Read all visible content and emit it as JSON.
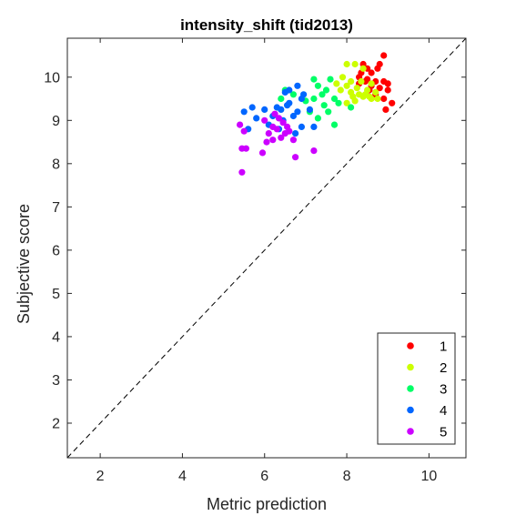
{
  "chart_data": {
    "type": "scatter",
    "title": "intensity_shift (tid2013)",
    "xlabel": "Metric prediction",
    "ylabel": "Subjective score",
    "xlim": [
      1.2,
      10.9
    ],
    "ylim": [
      1.2,
      10.9
    ],
    "xticks": [
      2,
      4,
      6,
      8,
      10
    ],
    "yticks": [
      2,
      3,
      4,
      5,
      6,
      7,
      8,
      9,
      10
    ],
    "grid": false,
    "reference_line": "y = x (dashed)",
    "legend_position": "bottom-right",
    "series": [
      {
        "name": "1",
        "color": "#ff0000",
        "points": [
          [
            8.9,
            10.5
          ],
          [
            8.8,
            10.3
          ],
          [
            8.5,
            10.2
          ],
          [
            8.4,
            10.3
          ],
          [
            8.6,
            10.1
          ],
          [
            8.3,
            10.0
          ],
          [
            8.5,
            9.95
          ],
          [
            8.7,
            9.9
          ],
          [
            8.9,
            9.9
          ],
          [
            9.0,
            9.85
          ],
          [
            8.6,
            9.8
          ],
          [
            8.3,
            9.85
          ],
          [
            8.8,
            9.75
          ],
          [
            9.0,
            9.7
          ],
          [
            8.7,
            9.6
          ],
          [
            8.55,
            9.7
          ],
          [
            8.9,
            9.5
          ],
          [
            9.1,
            9.4
          ],
          [
            8.95,
            9.25
          ],
          [
            8.35,
            10.1
          ],
          [
            8.75,
            10.2
          ],
          [
            8.45,
            9.9
          ]
        ]
      },
      {
        "name": "2",
        "color": "#ccff00",
        "points": [
          [
            8.0,
            10.3
          ],
          [
            8.2,
            10.3
          ],
          [
            8.4,
            10.2
          ],
          [
            7.9,
            10.0
          ],
          [
            8.1,
            9.9
          ],
          [
            8.35,
            9.9
          ],
          [
            8.6,
            9.85
          ],
          [
            8.0,
            9.8
          ],
          [
            8.25,
            9.75
          ],
          [
            8.5,
            9.7
          ],
          [
            8.7,
            9.65
          ],
          [
            8.3,
            9.6
          ],
          [
            8.55,
            9.55
          ],
          [
            8.15,
            9.55
          ],
          [
            8.75,
            9.5
          ],
          [
            7.85,
            9.7
          ],
          [
            8.1,
            9.65
          ],
          [
            7.75,
            9.85
          ],
          [
            8.45,
            9.6
          ],
          [
            8.2,
            9.45
          ],
          [
            8.6,
            9.5
          ],
          [
            8.0,
            9.4
          ],
          [
            8.4,
            9.55
          ]
        ]
      },
      {
        "name": "3",
        "color": "#00ff66",
        "points": [
          [
            6.5,
            9.7
          ],
          [
            6.7,
            9.6
          ],
          [
            6.4,
            9.5
          ],
          [
            7.2,
            9.95
          ],
          [
            7.6,
            9.95
          ],
          [
            7.3,
            9.8
          ],
          [
            7.5,
            9.7
          ],
          [
            7.4,
            9.6
          ],
          [
            7.7,
            9.5
          ],
          [
            7.2,
            9.5
          ],
          [
            7.0,
            9.45
          ],
          [
            7.45,
            9.35
          ],
          [
            7.8,
            9.4
          ],
          [
            7.55,
            9.2
          ],
          [
            8.1,
            9.3
          ],
          [
            7.1,
            9.2
          ],
          [
            7.3,
            9.05
          ],
          [
            7.7,
            8.9
          ]
        ]
      },
      {
        "name": "4",
        "color": "#0066ff",
        "points": [
          [
            6.6,
            9.7
          ],
          [
            6.8,
            9.8
          ],
          [
            6.5,
            9.65
          ],
          [
            6.9,
            9.5
          ],
          [
            6.6,
            9.4
          ],
          [
            6.3,
            9.3
          ],
          [
            6.0,
            9.25
          ],
          [
            5.7,
            9.3
          ],
          [
            6.4,
            9.25
          ],
          [
            6.8,
            9.2
          ],
          [
            7.1,
            9.25
          ],
          [
            6.2,
            9.1
          ],
          [
            6.7,
            9.1
          ],
          [
            6.45,
            9.0
          ],
          [
            5.8,
            9.05
          ],
          [
            6.9,
            8.85
          ],
          [
            7.2,
            8.85
          ],
          [
            6.1,
            8.9
          ],
          [
            6.35,
            8.8
          ],
          [
            6.75,
            8.7
          ],
          [
            5.6,
            8.8
          ],
          [
            5.5,
            9.2
          ],
          [
            6.95,
            9.6
          ],
          [
            6.55,
            9.35
          ]
        ]
      },
      {
        "name": "5",
        "color": "#cc00ff",
        "points": [
          [
            5.4,
            8.9
          ],
          [
            5.5,
            8.75
          ],
          [
            6.0,
            9.0
          ],
          [
            6.2,
            8.85
          ],
          [
            6.45,
            8.95
          ],
          [
            6.3,
            8.8
          ],
          [
            6.5,
            8.7
          ],
          [
            6.1,
            8.7
          ],
          [
            6.6,
            8.75
          ],
          [
            6.2,
            8.55
          ],
          [
            6.4,
            8.6
          ],
          [
            6.7,
            8.55
          ],
          [
            6.05,
            8.5
          ],
          [
            5.55,
            8.35
          ],
          [
            5.45,
            8.35
          ],
          [
            5.95,
            8.25
          ],
          [
            6.75,
            8.15
          ],
          [
            7.2,
            8.3
          ],
          [
            5.45,
            7.8
          ],
          [
            6.25,
            9.15
          ],
          [
            6.55,
            8.85
          ],
          [
            6.35,
            9.05
          ]
        ]
      }
    ]
  }
}
